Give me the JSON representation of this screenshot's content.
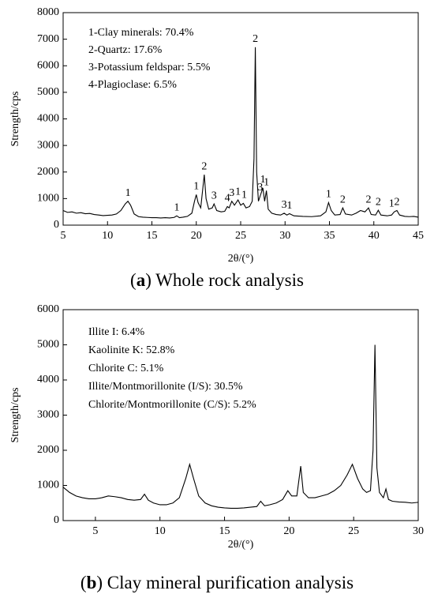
{
  "chart_data": [
    {
      "type": "line",
      "ylabel": "Strength/cps",
      "xlabel": "2θ/(°)",
      "caption": [
        "(",
        "a",
        ") Whole rock analysis"
      ],
      "annotations": [
        "1-Clay minerals: 70.4%",
        "2-Quartz: 17.6%",
        "3-Potassium feldspar: 5.5%",
        "4-Plagioclase: 6.5%"
      ],
      "xlim": [
        5,
        45
      ],
      "xticks": [
        5,
        10,
        15,
        20,
        25,
        30,
        35,
        40,
        45
      ],
      "ylim": [
        0,
        8000
      ],
      "yticks": [
        0,
        1000,
        2000,
        3000,
        4000,
        5000,
        6000,
        7000,
        8000
      ],
      "color": "#000000",
      "x": [
        5,
        5.5,
        6,
        6.5,
        7,
        7.5,
        8,
        8.5,
        9,
        9.5,
        10,
        10.5,
        11,
        11.5,
        12,
        12.3,
        12.6,
        13,
        13.5,
        14,
        14.5,
        15,
        15.5,
        16,
        16.5,
        17,
        17.5,
        17.8,
        18.1,
        18.5,
        19,
        19.5,
        19.8,
        20,
        20.2,
        20.5,
        20.9,
        21.1,
        21.4,
        21.8,
        22,
        22.3,
        22.8,
        23.2,
        23.5,
        23.7,
        24,
        24.3,
        24.7,
        25,
        25.3,
        25.6,
        26,
        26.3,
        26.5,
        26.65,
        26.8,
        27,
        27.2,
        27.5,
        27.7,
        27.9,
        28.1,
        28.5,
        29,
        29.5,
        29.9,
        30.2,
        30.5,
        31,
        32,
        33,
        34,
        34.6,
        34.9,
        35.2,
        35.6,
        36.2,
        36.5,
        36.8,
        37.5,
        38,
        38.5,
        39,
        39.4,
        39.7,
        40.2,
        40.5,
        40.8,
        41.5,
        42,
        42.3,
        42.6,
        42.9,
        43.5,
        44,
        44.5,
        45
      ],
      "values": [
        550,
        480,
        500,
        450,
        470,
        430,
        440,
        400,
        380,
        360,
        370,
        380,
        420,
        550,
        800,
        900,
        750,
        420,
        320,
        300,
        290,
        280,
        280,
        270,
        280,
        270,
        290,
        350,
        280,
        300,
        330,
        450,
        900,
        1150,
        850,
        650,
        1900,
        1000,
        600,
        650,
        800,
        550,
        500,
        520,
        700,
        650,
        900,
        750,
        950,
        750,
        820,
        650,
        700,
        900,
        2500,
        6700,
        2000,
        900,
        1100,
        1400,
        900,
        1300,
        600,
        450,
        400,
        380,
        450,
        380,
        430,
        350,
        330,
        320,
        350,
        500,
        850,
        550,
        380,
        400,
        650,
        420,
        380,
        450,
        550,
        500,
        650,
        400,
        380,
        560,
        380,
        350,
        380,
        500,
        550,
        380,
        330,
        320,
        330,
        300
      ],
      "peak_labels": [
        {
          "label": "1",
          "x": 12.3
        },
        {
          "label": "1",
          "x": 17.8
        },
        {
          "label": "1",
          "x": 20
        },
        {
          "label": "2",
          "x": 20.9
        },
        {
          "label": "3",
          "x": 22
        },
        {
          "label": "4",
          "x": 23.5
        },
        {
          "label": "3",
          "x": 24
        },
        {
          "label": "1",
          "x": 24.7
        },
        {
          "label": "1",
          "x": 25.4
        },
        {
          "label": "2",
          "x": 26.65
        },
        {
          "label": "3",
          "x": 27.2
        },
        {
          "label": "1",
          "x": 27.5
        },
        {
          "label": "1",
          "x": 27.9
        },
        {
          "label": "3",
          "x": 29.9
        },
        {
          "label": "1",
          "x": 30.5
        },
        {
          "label": "1",
          "x": 34.9
        },
        {
          "label": "2",
          "x": 36.5
        },
        {
          "label": "2",
          "x": 39.4
        },
        {
          "label": "2",
          "x": 40.5
        },
        {
          "label": "1",
          "x": 42
        },
        {
          "label": "2",
          "x": 42.6
        }
      ]
    },
    {
      "type": "line",
      "ylabel": "Strength/cps",
      "xlabel": "2θ/(°)",
      "caption": [
        "(",
        "b",
        ") Clay mineral purification analysis"
      ],
      "annotations": [
        "Illite I: 6.4%",
        "Kaolinite K: 52.8%",
        "Chlorite C: 5.1%",
        "Illite/Montmorillonite (I/S): 30.5%",
        "Chlorite/Montmorillonite (C/S): 5.2%"
      ],
      "xlim": [
        2.5,
        30
      ],
      "xticks": [
        5,
        10,
        15,
        20,
        25,
        30
      ],
      "ylim": [
        0,
        6000
      ],
      "yticks": [
        0,
        1000,
        2000,
        3000,
        4000,
        5000,
        6000
      ],
      "color": "#000000",
      "x": [
        2.5,
        3,
        3.5,
        4,
        4.5,
        5,
        5.5,
        6,
        6.5,
        7,
        7.5,
        8,
        8.5,
        8.8,
        9.1,
        9.5,
        10,
        10.5,
        11,
        11.5,
        12,
        12.3,
        12.6,
        13,
        13.5,
        14,
        14.5,
        15,
        15.5,
        16,
        16.5,
        17,
        17.5,
        17.8,
        18.1,
        18.5,
        19,
        19.5,
        19.9,
        20.2,
        20.6,
        20.9,
        21.1,
        21.5,
        22,
        22.5,
        23,
        23.5,
        24,
        24.5,
        24.9,
        25.3,
        25.7,
        26,
        26.3,
        26.5,
        26.65,
        26.8,
        27,
        27.3,
        27.5,
        27.7,
        28,
        28.5,
        29,
        29.5,
        30
      ],
      "values": [
        950,
        800,
        700,
        650,
        620,
        620,
        650,
        700,
        680,
        650,
        600,
        580,
        600,
        750,
        580,
        500,
        450,
        450,
        500,
        650,
        1200,
        1600,
        1200,
        700,
        500,
        420,
        380,
        360,
        350,
        350,
        360,
        380,
        400,
        550,
        420,
        450,
        500,
        600,
        850,
        700,
        700,
        1550,
        800,
        650,
        650,
        700,
        750,
        850,
        1000,
        1300,
        1600,
        1200,
        900,
        800,
        850,
        2000,
        5000,
        1500,
        800,
        650,
        900,
        600,
        550,
        530,
        520,
        500,
        520
      ]
    }
  ]
}
